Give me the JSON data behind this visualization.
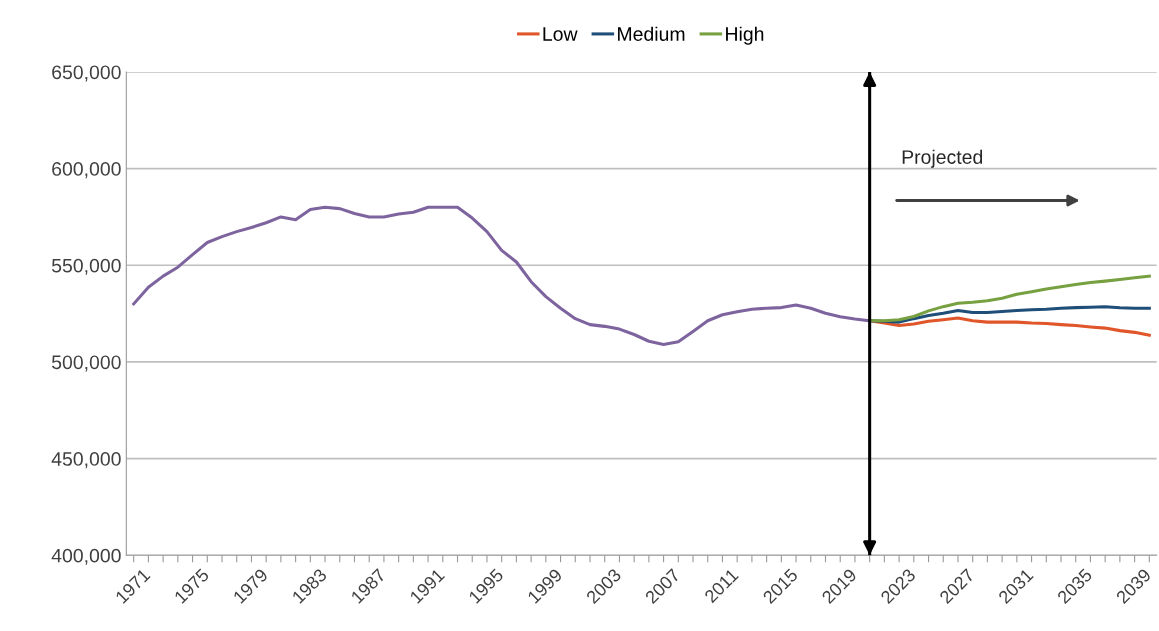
{
  "chart_data": {
    "type": "line",
    "x": [
      1971,
      1972,
      1973,
      1974,
      1975,
      1976,
      1977,
      1978,
      1979,
      1980,
      1981,
      1982,
      1983,
      1984,
      1985,
      1986,
      1987,
      1988,
      1989,
      1990,
      1991,
      1992,
      1993,
      1994,
      1995,
      1996,
      1997,
      1998,
      1999,
      2000,
      2001,
      2002,
      2003,
      2004,
      2005,
      2006,
      2007,
      2008,
      2009,
      2010,
      2011,
      2012,
      2013,
      2014,
      2015,
      2016,
      2017,
      2018,
      2019,
      2020,
      2021
    ],
    "series": [
      {
        "color": "#7e649e",
        "values": [
          530000,
          538600,
          544400,
          549000,
          555500,
          561800,
          564800,
          567400,
          569500,
          572000,
          575000,
          573500,
          578800,
          580000,
          579300,
          576800,
          575000,
          575000,
          576500,
          577400,
          580000,
          580000,
          580000,
          574400,
          567400,
          557700,
          551700,
          541500,
          533800,
          527800,
          522400,
          519300,
          518400,
          517000,
          514200,
          510700,
          509000,
          510400,
          515800,
          521300,
          524400,
          526000,
          527300,
          527800,
          528100,
          529500,
          527800,
          525200,
          523400,
          522200,
          521300
        ]
      },
      {
        "name": "Low",
        "color": "#e0562a",
        "x": [
          2021,
          2022,
          2023,
          2024,
          2025,
          2026,
          2027,
          2028,
          2029,
          2030,
          2031,
          2032,
          2033,
          2034,
          2035,
          2036,
          2037,
          2038,
          2039,
          2040
        ],
        "values": [
          521300,
          520100,
          518900,
          519600,
          521000,
          521800,
          522700,
          521300,
          520600,
          520600,
          520600,
          520100,
          519900,
          519300,
          518800,
          518100,
          517500,
          516200,
          515300,
          513800
        ]
      },
      {
        "name": "Medium",
        "color": "#1f4e79",
        "x": [
          2021,
          2022,
          2023,
          2024,
          2025,
          2026,
          2027,
          2028,
          2029,
          2030,
          2031,
          2032,
          2033,
          2034,
          2035,
          2036,
          2037,
          2038,
          2039,
          2040
        ],
        "values": [
          521300,
          521000,
          520600,
          522400,
          524000,
          525200,
          526600,
          525600,
          525600,
          526100,
          526600,
          527000,
          527300,
          527800,
          528100,
          528300,
          528500,
          528000,
          527800,
          527800
        ]
      },
      {
        "name": "High",
        "color": "#77a040",
        "x": [
          2021,
          2022,
          2023,
          2024,
          2025,
          2026,
          2027,
          2028,
          2029,
          2030,
          2031,
          2032,
          2033,
          2034,
          2035,
          2036,
          2037,
          2038,
          2039,
          2040
        ],
        "values": [
          521300,
          521300,
          521800,
          523500,
          526400,
          528600,
          530400,
          530900,
          531600,
          532900,
          535000,
          536300,
          537700,
          538900,
          540100,
          541100,
          541800,
          542600,
          543500,
          544400
        ]
      }
    ],
    "xlim": [
      1970.5,
      2040.5
    ],
    "xticks": [
      1971,
      {
        "value": 1972,
        "label": null
      },
      {
        "value": 1973,
        "label": null
      },
      {
        "value": 1974,
        "label": null
      },
      1975,
      {
        "value": 1976,
        "label": null
      },
      {
        "value": 1977,
        "label": null
      },
      {
        "value": 1978,
        "label": null
      },
      1979,
      {
        "value": 1980,
        "label": null
      },
      {
        "value": 1981,
        "label": null
      },
      {
        "value": 1982,
        "label": null
      },
      1983,
      {
        "value": 1984,
        "label": null
      },
      {
        "value": 1985,
        "label": null
      },
      {
        "value": 1986,
        "label": null
      },
      1987,
      {
        "value": 1988,
        "label": null
      },
      {
        "value": 1989,
        "label": null
      },
      {
        "value": 1990,
        "label": null
      },
      1991,
      {
        "value": 1992,
        "label": null
      },
      {
        "value": 1993,
        "label": null
      },
      {
        "value": 1994,
        "label": null
      },
      1995,
      {
        "value": 1996,
        "label": null
      },
      {
        "value": 1997,
        "label": null
      },
      {
        "value": 1998,
        "label": null
      },
      1999,
      {
        "value": 2000,
        "label": null
      },
      {
        "value": 2001,
        "label": null
      },
      {
        "value": 2002,
        "label": null
      },
      2003,
      {
        "value": 2004,
        "label": null
      },
      {
        "value": 2005,
        "label": null
      },
      {
        "value": 2006,
        "label": null
      },
      2007,
      {
        "value": 2008,
        "label": null
      },
      {
        "value": 2009,
        "label": null
      },
      {
        "value": 2010,
        "label": null
      },
      2011,
      {
        "value": 2012,
        "label": null
      },
      {
        "value": 2013,
        "label": null
      },
      {
        "value": 2014,
        "label": null
      },
      2015,
      {
        "value": 2016,
        "label": null
      },
      {
        "value": 2017,
        "label": null
      },
      {
        "value": 2018,
        "label": null
      },
      2019,
      {
        "value": 2020,
        "label": null
      },
      {
        "value": 2021,
        "label": null
      },
      {
        "value": 2022,
        "label": null
      },
      2023,
      {
        "value": 2024,
        "label": null
      },
      {
        "value": 2025,
        "label": null
      },
      {
        "value": 2026,
        "label": null
      },
      2027,
      {
        "value": 2028,
        "label": null
      },
      {
        "value": 2029,
        "label": null
      },
      {
        "value": 2030,
        "label": null
      },
      2031,
      {
        "value": 2032,
        "label": null
      },
      {
        "value": 2033,
        "label": null
      },
      {
        "value": 2034,
        "label": null
      },
      2035,
      {
        "value": 2036,
        "label": null
      },
      {
        "value": 2037,
        "label": null
      },
      {
        "value": 2038,
        "label": null
      },
      2039,
      {
        "value": 2040,
        "label": null
      }
    ],
    "ylim": [
      400000,
      650000
    ],
    "yticks": [
      {
        "value": 400000,
        "label": "400,000"
      },
      {
        "value": 450000,
        "label": "450,000"
      },
      {
        "value": 500000,
        "label": "500,000"
      },
      {
        "value": 550000,
        "label": "550,000"
      },
      {
        "value": 600000,
        "label": "600,000"
      },
      {
        "value": 650000,
        "label": "650,000"
      }
    ],
    "ref_lines": [
      {
        "axis": "x",
        "value": 2021,
        "color": "#000000",
        "line_style": "solid"
      }
    ],
    "annotations": [
      "Projected"
    ],
    "grid": "y",
    "legend": "top",
    "marker": "none",
    "line_style": "solid"
  }
}
